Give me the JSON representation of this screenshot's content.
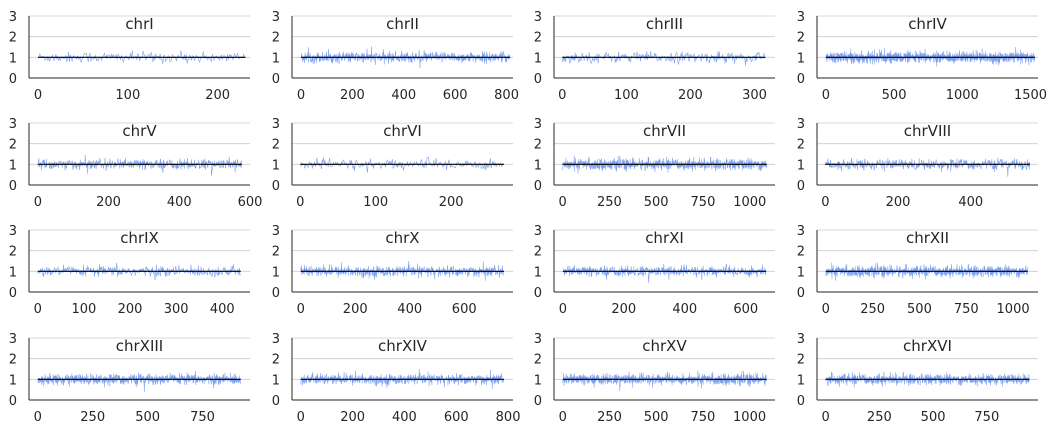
{
  "chart_data": {
    "type": "line",
    "ylim": [
      0,
      3
    ],
    "y_ticks": [
      0,
      1,
      2,
      3
    ],
    "grid": "horizontal",
    "signal_color": "#4f7fe8",
    "baseline_color": "#000000",
    "baseline_value": 1,
    "panels": [
      {
        "title": "chrI",
        "x_ticks": [
          0,
          100,
          200
        ],
        "xlim": [
          -10,
          236
        ],
        "n": 231
      },
      {
        "title": "chrII",
        "x_ticks": [
          0,
          200,
          400,
          600,
          800
        ],
        "xlim": [
          -35,
          825
        ],
        "n": 814
      },
      {
        "title": "chrIII",
        "x_ticks": [
          0,
          100,
          200,
          300
        ],
        "xlim": [
          -13,
          332
        ],
        "n": 317
      },
      {
        "title": "chrIV",
        "x_ticks": [
          0,
          500,
          1000,
          1500
        ],
        "xlim": [
          -65,
          1555
        ],
        "n": 1532
      },
      {
        "title": "chrV",
        "x_ticks": [
          0,
          200,
          400,
          600
        ],
        "xlim": [
          -25,
          600
        ],
        "n": 577
      },
      {
        "title": "chrVI",
        "x_ticks": [
          0,
          100,
          200
        ],
        "xlim": [
          -11,
          282
        ],
        "n": 270
      },
      {
        "title": "chrVII",
        "x_ticks": [
          0,
          250,
          500,
          750,
          1000
        ],
        "xlim": [
          -46,
          1135
        ],
        "n": 1091
      },
      {
        "title": "chrVIII",
        "x_ticks": [
          0,
          200,
          400
        ],
        "xlim": [
          -23,
          585
        ],
        "n": 563
      },
      {
        "title": "chrIX",
        "x_ticks": [
          0,
          100,
          200,
          300,
          400
        ],
        "xlim": [
          -19,
          460
        ],
        "n": 440
      },
      {
        "title": "chrX",
        "x_ticks": [
          0,
          200,
          400,
          600
        ],
        "xlim": [
          -32,
          779
        ],
        "n": 746
      },
      {
        "title": "chrXI",
        "x_ticks": [
          0,
          200,
          400,
          600
        ],
        "xlim": [
          -29,
          696
        ],
        "n": 667
      },
      {
        "title": "chrXII",
        "x_ticks": [
          0,
          250,
          500,
          750,
          1000
        ],
        "xlim": [
          -47,
          1133
        ],
        "n": 1078
      },
      {
        "title": "chrXIII",
        "x_ticks": [
          0,
          250,
          500,
          750
        ],
        "xlim": [
          -40,
          966
        ],
        "n": 924
      },
      {
        "title": "chrXIV",
        "x_ticks": [
          0,
          200,
          400,
          600,
          800
        ],
        "xlim": [
          -34,
          819
        ],
        "n": 784
      },
      {
        "title": "chrXV",
        "x_ticks": [
          0,
          250,
          500,
          750,
          1000
        ],
        "xlim": [
          -47,
          1136
        ],
        "n": 1091
      },
      {
        "title": "chrXVI",
        "x_ticks": [
          0,
          250,
          500,
          750
        ],
        "xlim": [
          -40,
          988
        ],
        "n": 948
      }
    ]
  }
}
